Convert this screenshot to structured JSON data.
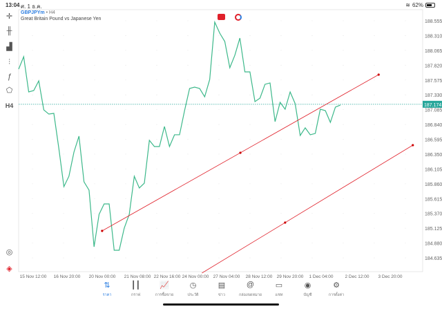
{
  "status": {
    "time": "13:04",
    "date": "ศ. 1 ธ.ค.",
    "battery": "62%",
    "battery_level": 0.62
  },
  "header": {
    "symbol": "GBPJPYm",
    "timeframe": "H4",
    "description": "Great Britain Pound vs Japanese Yen"
  },
  "toolbar": {
    "items": [
      "crosshair-icon",
      "candles-icon",
      "bar-chart-icon",
      "indicators-icon",
      "function-icon",
      "objects-icon",
      "timeframe-H4"
    ],
    "timeframe_label": "H4"
  },
  "colors": {
    "line": "#3cb88a",
    "trend": "#e0202a",
    "current_price_bg": "#26a69a",
    "accent": "#2a7de1"
  },
  "chart_data": {
    "type": "line",
    "current_price": "187.174",
    "price_ticks": [
      "188.555",
      "188.310",
      "188.065",
      "187.820",
      "187.575",
      "187.330",
      "187.085",
      "186.840",
      "186.595",
      "186.350",
      "186.105",
      "185.860",
      "185.615",
      "185.370",
      "185.125",
      "184.880",
      "184.635"
    ],
    "time_ticks": [
      "15 Nov 12:00",
      "16 Nov 20:00",
      "20 Nov 00:00",
      "21 Nov 08:00",
      "22 Nov 16:00",
      "24 Nov 00:00",
      "27 Nov 04:00",
      "28 Nov 12:00",
      "29 Nov 20:00",
      "1 Dec 04:00",
      "2 Dec 12:00",
      "3 Dec 20:00"
    ],
    "values": [
      187.755,
      187.961,
      187.378,
      187.401,
      187.561,
      187.081,
      187.012,
      187.024,
      186.441,
      185.813,
      185.984,
      186.384,
      186.647,
      185.892,
      185.755,
      184.818,
      185.355,
      185.527,
      185.527,
      184.761,
      184.761,
      185.127,
      185.355,
      185.984,
      185.79,
      185.87,
      186.578,
      186.475,
      186.475,
      186.807,
      186.475,
      186.67,
      186.67,
      187.069,
      187.435,
      187.458,
      187.435,
      187.298,
      187.584,
      188.532,
      188.349,
      188.212,
      187.778,
      187.984,
      188.269,
      187.709,
      187.709,
      187.218,
      187.275,
      187.504,
      187.527,
      186.887,
      187.207,
      187.092,
      187.378,
      187.184,
      186.658,
      186.784,
      186.67,
      186.692,
      187.092,
      187.069,
      186.875,
      187.127,
      187.161
    ],
    "trendlines": [
      {
        "points": [
          [
            16.6,
            185.081
          ],
          [
            44.1,
            186.372
          ],
          [
            71.6,
            187.664
          ]
        ]
      },
      {
        "points": [
          [
            53.0,
            185.218
          ],
          [
            78.4,
            186.498
          ]
        ]
      }
    ]
  },
  "nav": {
    "items": [
      {
        "label": "ราคา",
        "icon": "quotes-icon",
        "glyph": "⇅",
        "active": true
      },
      {
        "label": "กราฟ",
        "icon": "chart-icon",
        "glyph": "┃┃"
      },
      {
        "label": "การซื้อขาย",
        "icon": "trade-icon",
        "glyph": "📈"
      },
      {
        "label": "ประวัติ",
        "icon": "history-icon",
        "glyph": "◷"
      },
      {
        "label": "ข่าว",
        "icon": "news-icon",
        "glyph": "▤"
      },
      {
        "label": "กล่องจดหมาย",
        "icon": "mailbox-icon",
        "glyph": "@"
      },
      {
        "label": "แชท",
        "icon": "chat-icon",
        "glyph": "▭"
      },
      {
        "label": "บัญชี",
        "icon": "account-icon",
        "glyph": "◉"
      },
      {
        "label": "การตั้งค่า",
        "icon": "settings-icon",
        "glyph": "⚙"
      }
    ]
  }
}
